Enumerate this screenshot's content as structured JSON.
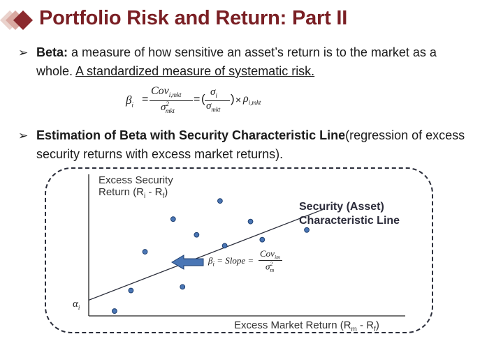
{
  "slide": {
    "title": "Portfolio Risk and Return: Part II"
  },
  "bullets": [
    {
      "marker": "➢",
      "lead": "Beta:",
      "text_line1": " a measure of how sensitive an asset’s return is to the market as a",
      "text_line2": "whole. ",
      "underlined": "A standardized measure of systematic risk."
    },
    {
      "marker": "➢",
      "lead": "Estimation of Beta with Security Characteristic Line",
      "text_line1": "(regression of excess",
      "text_line2": "security returns with excess market returns)."
    }
  ],
  "formula": {
    "beta": "β",
    "beta_sub": "i",
    "equals": "=",
    "num_cov": "Cov",
    "num_cov_sub": "i,mkt",
    "den_sigma": "σ",
    "den_sigma_sup": "2",
    "den_sigma_sub": "mkt",
    "paren_open": "(",
    "ratio_num": "σ",
    "ratio_num_sub": "i",
    "ratio_den": "σ",
    "ratio_den_sub": "mkt",
    "paren_close": ")",
    "times": "×",
    "rho": "ρ",
    "rho_sub": "i,mkt"
  },
  "chart_data": {
    "type": "scatter",
    "ylabel_line1": "Excess Security",
    "ylabel_line2": "Return (R",
    "ylabel_sub_i": "i",
    "ylabel_mid": " - R",
    "ylabel_sub_f": "f",
    "ylabel_end": ")",
    "xlabel_start": "Excess Market Return (R",
    "xlabel_sub_m": "m",
    "xlabel_mid": " - R",
    "xlabel_sub_f": "f",
    "xlabel_end": ")",
    "intercept_label": "α",
    "intercept_sub": "i",
    "line_label_line1": "Security (Asset)",
    "line_label_line2": "Characteristic Line",
    "slope_label": "β",
    "slope_label_sub": "i",
    "slope_text": " = Slope =",
    "slope_num": "Cov",
    "slope_num_sub": "im",
    "slope_den": "σ",
    "slope_den_sup": "2",
    "slope_den_sub": "m",
    "line_color": "#2a2d3a",
    "point_color": "#4a76b5",
    "points": [
      {
        "x": 0.11,
        "y": 0.04
      },
      {
        "x": 0.18,
        "y": 0.21
      },
      {
        "x": 0.24,
        "y": 0.53
      },
      {
        "x": 0.36,
        "y": 0.8
      },
      {
        "x": 0.4,
        "y": 0.24
      },
      {
        "x": 0.46,
        "y": 0.67
      },
      {
        "x": 0.56,
        "y": 0.95
      },
      {
        "x": 0.58,
        "y": 0.58
      },
      {
        "x": 0.69,
        "y": 0.78
      },
      {
        "x": 0.74,
        "y": 0.63
      },
      {
        "x": 0.93,
        "y": 0.71
      }
    ],
    "regression": {
      "x0": 0.0,
      "y0": 0.13,
      "x1": 1.0,
      "y1": 0.88
    },
    "xlim": [
      0,
      1.35
    ],
    "ylim": [
      0,
      1.17
    ]
  },
  "colors": {
    "title": "#7a1f24",
    "diamond_dark": "#8b2a2e",
    "diamond_light": "#e8c4bf",
    "arrow_fill": "#4a76b5"
  }
}
